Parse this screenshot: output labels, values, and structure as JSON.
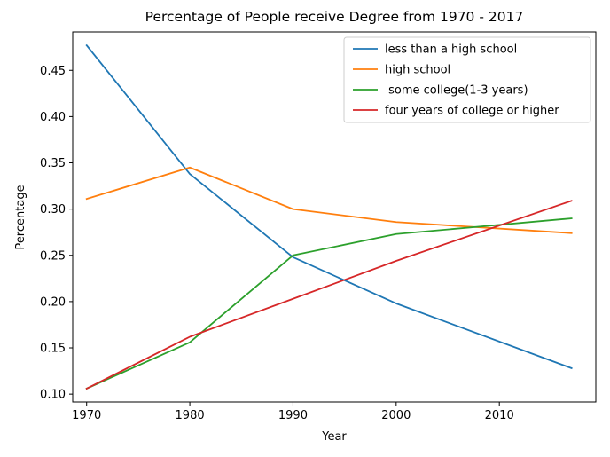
{
  "chart_data": {
    "type": "line",
    "title": "Percentage of People receive Degree from 1970 - 2017",
    "xlabel": "Year",
    "ylabel": "Percentage",
    "x": [
      1970,
      1980,
      1990,
      2000,
      2017
    ],
    "xlim": [
      1968.65,
      2019.35
    ],
    "ylim": [
      0.0915,
      0.4915
    ],
    "xticks": [
      1970,
      1980,
      1990,
      2000,
      2010
    ],
    "yticks": [
      0.1,
      0.15,
      0.2,
      0.25,
      0.3,
      0.35,
      0.4,
      0.45
    ],
    "ytick_labels": [
      "0.10",
      "0.15",
      "0.20",
      "0.25",
      "0.30",
      "0.35",
      "0.40",
      "0.45"
    ],
    "xtick_labels": [
      "1970",
      "1980",
      "1990",
      "2000",
      "2010"
    ],
    "grid": false,
    "legend_position": "top-right",
    "series": [
      {
        "name": "less than a high school",
        "color": "#1f77b4",
        "values": [
          0.477,
          0.338,
          0.248,
          0.198,
          0.128
        ]
      },
      {
        "name": "high school",
        "color": "#ff7f0e",
        "values": [
          0.311,
          0.345,
          0.3,
          0.286,
          0.274
        ]
      },
      {
        "name": " some college(1-3 years)",
        "color": "#2ca02c",
        "values": [
          0.106,
          0.156,
          0.25,
          0.273,
          0.29
        ]
      },
      {
        "name": "four years of college or higher",
        "color": "#d62728",
        "values": [
          0.106,
          0.162,
          0.203,
          0.244,
          0.309
        ]
      }
    ]
  }
}
